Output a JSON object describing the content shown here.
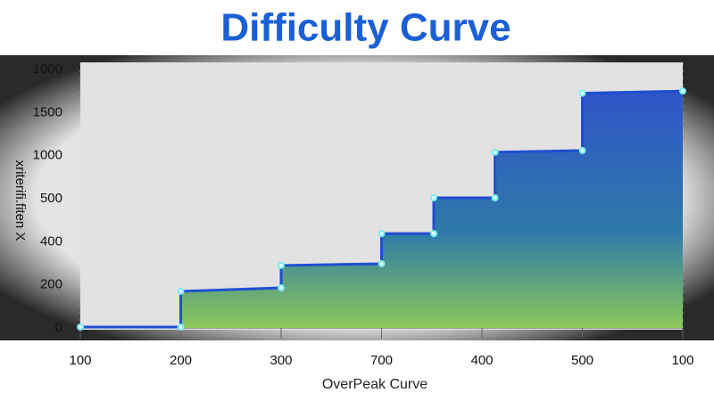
{
  "chart_data": {
    "type": "step-area",
    "title": "Difficulty Curve",
    "x_label": "OverPeak Curve",
    "y_label": "xriterifi.fiten X",
    "x": [
      0,
      1,
      1,
      2,
      2,
      3,
      3,
      3.52,
      3.52,
      4.13,
      4.13,
      5,
      5,
      6
    ],
    "series": [
      {
        "color": "#1f4fd0",
        "values": [
          0.02,
          0.02,
          0.85,
          0.93,
          1.45,
          1.49,
          2.19,
          2.19,
          3.02,
          3.02,
          4.08,
          4.12,
          5.45,
          5.5
        ]
      }
    ],
    "xlim": [
      0,
      6
    ],
    "ylim": [
      0,
      6
    ],
    "xticks": [
      {
        "value": 0,
        "label": "100"
      },
      {
        "value": 1,
        "label": "200"
      },
      {
        "value": 2,
        "label": "300"
      },
      {
        "value": 3,
        "label": "700"
      },
      {
        "value": 4,
        "label": "400"
      },
      {
        "value": 5,
        "label": "500"
      },
      {
        "value": 6,
        "label": "100"
      }
    ],
    "yticks": [
      0,
      {
        "value": 1,
        "label": "200"
      },
      {
        "value": 2,
        "label": "400"
      },
      {
        "value": 3,
        "label": "500"
      },
      {
        "value": 4,
        "label": "1000"
      },
      {
        "value": 5,
        "label": "1500"
      },
      {
        "value": 6,
        "label": "1000"
      }
    ],
    "grid": true
  }
}
